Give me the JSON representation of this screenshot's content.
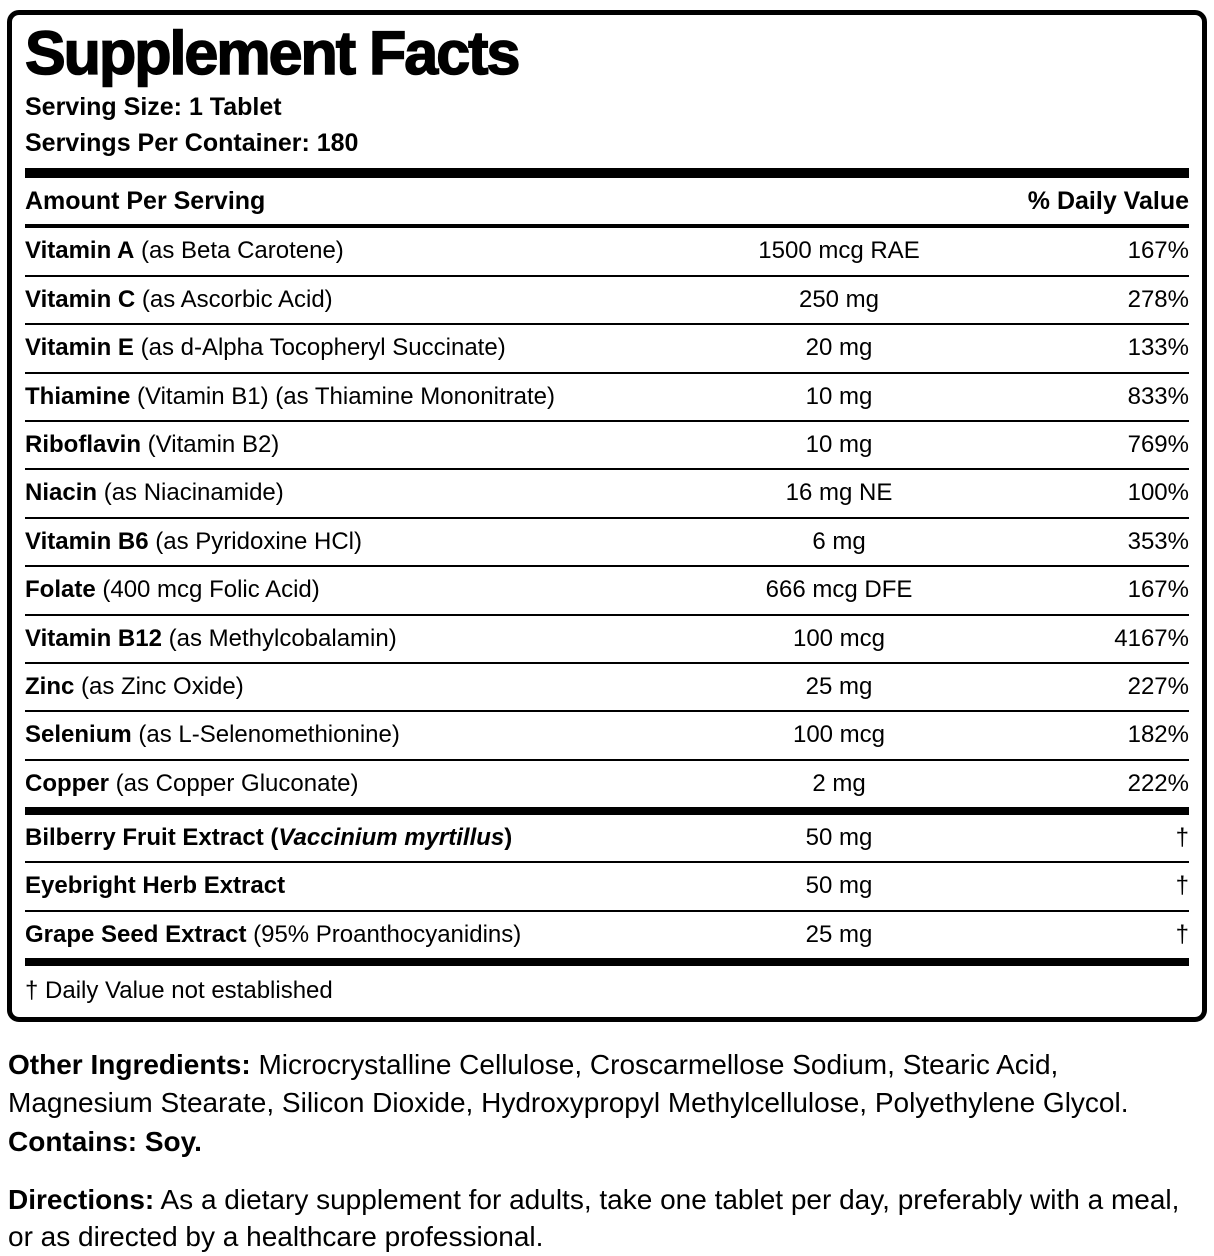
{
  "panel": {
    "title": "Supplement Facts",
    "serving_size": "Serving Size: 1 Tablet",
    "servings_per_container": "Servings Per Container: 180",
    "col_amount": "Amount Per Serving",
    "col_dv": "% Daily Value",
    "rows": [
      {
        "name": "Vitamin A",
        "detail": " (as Beta Carotene)",
        "amount": "1500 mcg RAE",
        "dv": "167%"
      },
      {
        "name": "Vitamin C",
        "detail": " (as Ascorbic Acid)",
        "amount": "250 mg",
        "dv": "278%"
      },
      {
        "name": "Vitamin E",
        "detail": " (as d-Alpha Tocopheryl Succinate)",
        "amount": "20 mg",
        "dv": "133%"
      },
      {
        "name": "Thiamine",
        "detail": " (Vitamin B1) (as Thiamine Mononitrate)",
        "amount": "10 mg",
        "dv": "833%"
      },
      {
        "name": "Riboflavin",
        "detail": " (Vitamin B2)",
        "amount": "10 mg",
        "dv": "769%"
      },
      {
        "name": "Niacin",
        "detail": " (as Niacinamide)",
        "amount": "16 mg NE",
        "dv": "100%"
      },
      {
        "name": "Vitamin B6",
        "detail": " (as Pyridoxine HCl)",
        "amount": "6 mg",
        "dv": "353%"
      },
      {
        "name": "Folate",
        "detail": " (400 mcg Folic Acid)",
        "amount": "666 mcg DFE",
        "dv": "167%"
      },
      {
        "name": "Vitamin B12",
        "detail": " (as Methylcobalamin)",
        "amount": "100 mcg",
        "dv": "4167%"
      },
      {
        "name": "Zinc",
        "detail": " (as Zinc Oxide)",
        "amount": "25 mg",
        "dv": "227%"
      },
      {
        "name": "Selenium",
        "detail": " (as L-Selenomethionine)",
        "amount": "100 mcg",
        "dv": "182%"
      },
      {
        "name": "Copper",
        "detail": " (as Copper Gluconate)",
        "amount": "2 mg",
        "dv": "222%"
      }
    ],
    "herb_rows": [
      {
        "name": "Bilberry Fruit Extract (",
        "italic": "Vaccinium myrtillus",
        "close": ")",
        "amount": "50 mg",
        "dv": "†"
      },
      {
        "name": "Eyebright Herb Extract",
        "detail": "",
        "amount": "50 mg",
        "dv": "†"
      },
      {
        "name": "Grape Seed Extract",
        "detail": " (95% Proanthocyanidins)",
        "amount": "25 mg",
        "dv": "†"
      }
    ],
    "footnote": "† Daily Value not established"
  },
  "other_ingredients": {
    "label": "Other Ingredients:",
    "text": " Microcrystalline Cellulose, Croscarmellose Sodium, Stearic Acid, Magnesium Stearate, Silicon Dioxide, Hydroxypropyl Methylcellulose, Polyethylene Glycol."
  },
  "contains": "Contains: Soy.",
  "directions": {
    "label": "Directions:",
    "text": " As a dietary supplement for adults, take one tablet per day, preferably with a meal, or as directed by a healthcare professional."
  }
}
